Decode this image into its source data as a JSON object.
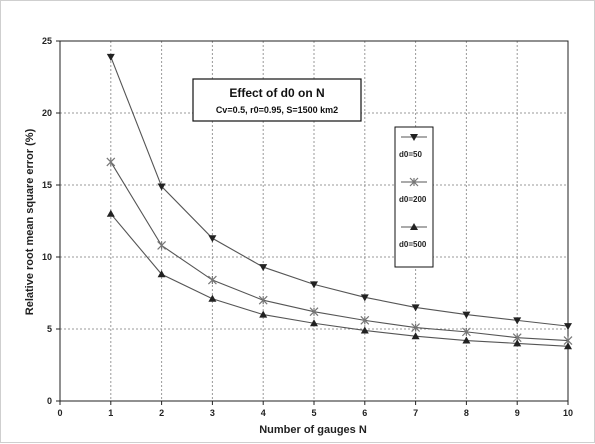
{
  "chart_data": {
    "type": "line",
    "title": "Effect of d0 on N",
    "subtitle": "Cv=0.5, r0=0.95, S=1500 km2",
    "xlabel": "Number of gauges N",
    "ylabel": "Relative root mean square error (%)",
    "xlim": [
      0,
      10
    ],
    "ylim": [
      0,
      25
    ],
    "x_ticks": [
      "0",
      "1",
      "2",
      "3",
      "4",
      "5",
      "6",
      "7",
      "8",
      "9",
      "10"
    ],
    "y_ticks": [
      "0",
      "5",
      "10",
      "15",
      "20",
      "25"
    ],
    "grid": true,
    "legend_position": "right",
    "x": [
      1,
      2,
      3,
      4,
      5,
      6,
      7,
      8,
      9,
      10
    ],
    "series": [
      {
        "name": "d0=50",
        "marker": "triangle-down",
        "values": [
          23.9,
          14.9,
          11.3,
          9.3,
          8.1,
          7.2,
          6.5,
          6.0,
          5.6,
          5.2
        ]
      },
      {
        "name": "d0=200",
        "marker": "star",
        "values": [
          16.6,
          10.8,
          8.4,
          7.0,
          6.2,
          5.6,
          5.1,
          4.8,
          4.4,
          4.2
        ]
      },
      {
        "name": "d0=500",
        "marker": "triangle-up",
        "values": [
          13.0,
          8.8,
          7.1,
          6.0,
          5.4,
          4.9,
          4.5,
          4.2,
          4.0,
          3.8
        ]
      }
    ],
    "colors": {
      "line": "#555555",
      "marker": "#222222",
      "grid": "#9a9a9a"
    }
  }
}
